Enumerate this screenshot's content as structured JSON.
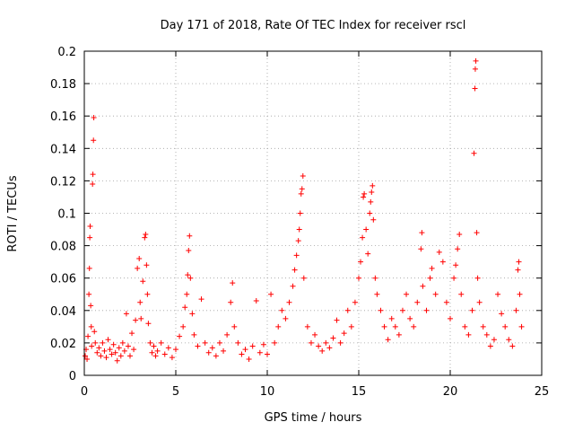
{
  "chart_data": {
    "type": "scatter",
    "title": "Day 171 of 2018, Rate Of TEC Index for receiver rscl",
    "xlabel": "GPS time / hours",
    "ylabel": "ROTI / TECUs",
    "xlim": [
      0,
      25
    ],
    "ylim": [
      0,
      0.2
    ],
    "xticks": [
      0,
      5,
      10,
      15,
      20,
      25
    ],
    "yticks": [
      0,
      0.02,
      0.04,
      0.06,
      0.08,
      0.1,
      0.12,
      0.14,
      0.16,
      0.18,
      0.2
    ],
    "xtick_labels": [
      "0",
      "5",
      "10",
      "15",
      "20",
      "25"
    ],
    "ytick_labels": [
      "0",
      "0.02",
      "0.04",
      "0.06",
      "0.08",
      "0.1",
      "0.12",
      "0.14",
      "0.16",
      "0.18",
      "0.2"
    ],
    "grid": true,
    "marker": "+",
    "color": "#ff0000",
    "series": [
      {
        "name": "ROTI",
        "points": [
          [
            0.05,
            0.012
          ],
          [
            0.1,
            0.016
          ],
          [
            0.15,
            0.01
          ],
          [
            0.2,
            0.024
          ],
          [
            0.25,
            0.05
          ],
          [
            0.28,
            0.066
          ],
          [
            0.3,
            0.085
          ],
          [
            0.32,
            0.092
          ],
          [
            0.35,
            0.043
          ],
          [
            0.38,
            0.03
          ],
          [
            0.4,
            0.018
          ],
          [
            0.45,
            0.118
          ],
          [
            0.47,
            0.124
          ],
          [
            0.5,
            0.145
          ],
          [
            0.52,
            0.159
          ],
          [
            0.55,
            0.027
          ],
          [
            0.6,
            0.02
          ],
          [
            0.7,
            0.014
          ],
          [
            0.8,
            0.017
          ],
          [
            0.9,
            0.012
          ],
          [
            1.0,
            0.02
          ],
          [
            1.1,
            0.015
          ],
          [
            1.2,
            0.011
          ],
          [
            1.3,
            0.022
          ],
          [
            1.4,
            0.016
          ],
          [
            1.5,
            0.013
          ],
          [
            1.6,
            0.019
          ],
          [
            1.7,
            0.014
          ],
          [
            1.8,
            0.009
          ],
          [
            1.9,
            0.017
          ],
          [
            2.0,
            0.012
          ],
          [
            2.1,
            0.02
          ],
          [
            2.2,
            0.015
          ],
          [
            2.3,
            0.038
          ],
          [
            2.4,
            0.018
          ],
          [
            2.5,
            0.012
          ],
          [
            2.6,
            0.026
          ],
          [
            2.7,
            0.016
          ],
          [
            2.8,
            0.034
          ],
          [
            2.9,
            0.066
          ],
          [
            3.0,
            0.072
          ],
          [
            3.05,
            0.045
          ],
          [
            3.1,
            0.035
          ],
          [
            3.2,
            0.058
          ],
          [
            3.3,
            0.085
          ],
          [
            3.35,
            0.087
          ],
          [
            3.4,
            0.068
          ],
          [
            3.45,
            0.05
          ],
          [
            3.5,
            0.032
          ],
          [
            3.6,
            0.02
          ],
          [
            3.7,
            0.014
          ],
          [
            3.8,
            0.018
          ],
          [
            3.9,
            0.012
          ],
          [
            4.0,
            0.015
          ],
          [
            4.2,
            0.02
          ],
          [
            4.4,
            0.013
          ],
          [
            4.6,
            0.017
          ],
          [
            4.8,
            0.011
          ],
          [
            5.0,
            0.016
          ],
          [
            5.2,
            0.024
          ],
          [
            5.4,
            0.03
          ],
          [
            5.5,
            0.042
          ],
          [
            5.6,
            0.05
          ],
          [
            5.65,
            0.062
          ],
          [
            5.7,
            0.077
          ],
          [
            5.75,
            0.086
          ],
          [
            5.8,
            0.06
          ],
          [
            5.9,
            0.038
          ],
          [
            6.0,
            0.025
          ],
          [
            6.2,
            0.018
          ],
          [
            6.4,
            0.047
          ],
          [
            6.6,
            0.02
          ],
          [
            6.8,
            0.014
          ],
          [
            7.0,
            0.017
          ],
          [
            7.2,
            0.012
          ],
          [
            7.4,
            0.02
          ],
          [
            7.6,
            0.015
          ],
          [
            7.8,
            0.025
          ],
          [
            8.0,
            0.045
          ],
          [
            8.1,
            0.057
          ],
          [
            8.2,
            0.03
          ],
          [
            8.4,
            0.02
          ],
          [
            8.6,
            0.013
          ],
          [
            8.8,
            0.016
          ],
          [
            9.0,
            0.01
          ],
          [
            9.2,
            0.018
          ],
          [
            9.4,
            0.046
          ],
          [
            9.6,
            0.014
          ],
          [
            9.8,
            0.019
          ],
          [
            10.0,
            0.013
          ],
          [
            10.2,
            0.05
          ],
          [
            10.4,
            0.02
          ],
          [
            10.6,
            0.03
          ],
          [
            10.8,
            0.04
          ],
          [
            11.0,
            0.035
          ],
          [
            11.2,
            0.045
          ],
          [
            11.4,
            0.055
          ],
          [
            11.5,
            0.065
          ],
          [
            11.6,
            0.074
          ],
          [
            11.7,
            0.083
          ],
          [
            11.75,
            0.09
          ],
          [
            11.8,
            0.1
          ],
          [
            11.85,
            0.112
          ],
          [
            11.9,
            0.115
          ],
          [
            11.95,
            0.123
          ],
          [
            12.0,
            0.06
          ],
          [
            12.2,
            0.03
          ],
          [
            12.4,
            0.02
          ],
          [
            12.6,
            0.025
          ],
          [
            12.8,
            0.018
          ],
          [
            13.0,
            0.015
          ],
          [
            13.2,
            0.02
          ],
          [
            13.4,
            0.017
          ],
          [
            13.6,
            0.023
          ],
          [
            13.8,
            0.034
          ],
          [
            14.0,
            0.02
          ],
          [
            14.2,
            0.026
          ],
          [
            14.4,
            0.04
          ],
          [
            14.6,
            0.03
          ],
          [
            14.8,
            0.045
          ],
          [
            15.0,
            0.06
          ],
          [
            15.1,
            0.07
          ],
          [
            15.2,
            0.085
          ],
          [
            15.25,
            0.11
          ],
          [
            15.3,
            0.112
          ],
          [
            15.4,
            0.09
          ],
          [
            15.5,
            0.075
          ],
          [
            15.6,
            0.1
          ],
          [
            15.65,
            0.107
          ],
          [
            15.7,
            0.113
          ],
          [
            15.75,
            0.117
          ],
          [
            15.8,
            0.096
          ],
          [
            15.9,
            0.06
          ],
          [
            16.0,
            0.05
          ],
          [
            16.2,
            0.04
          ],
          [
            16.4,
            0.03
          ],
          [
            16.6,
            0.022
          ],
          [
            16.8,
            0.035
          ],
          [
            17.0,
            0.03
          ],
          [
            17.2,
            0.025
          ],
          [
            17.4,
            0.04
          ],
          [
            17.6,
            0.05
          ],
          [
            17.8,
            0.035
          ],
          [
            18.0,
            0.03
          ],
          [
            18.2,
            0.045
          ],
          [
            18.4,
            0.078
          ],
          [
            18.45,
            0.088
          ],
          [
            18.5,
            0.055
          ],
          [
            18.7,
            0.04
          ],
          [
            18.9,
            0.06
          ],
          [
            19.0,
            0.066
          ],
          [
            19.2,
            0.05
          ],
          [
            19.4,
            0.076
          ],
          [
            19.6,
            0.07
          ],
          [
            19.8,
            0.045
          ],
          [
            20.0,
            0.035
          ],
          [
            20.2,
            0.06
          ],
          [
            20.3,
            0.068
          ],
          [
            20.4,
            0.078
          ],
          [
            20.5,
            0.087
          ],
          [
            20.6,
            0.05
          ],
          [
            20.8,
            0.03
          ],
          [
            21.0,
            0.025
          ],
          [
            21.2,
            0.04
          ],
          [
            21.3,
            0.137
          ],
          [
            21.35,
            0.177
          ],
          [
            21.37,
            0.189
          ],
          [
            21.4,
            0.194
          ],
          [
            21.45,
            0.088
          ],
          [
            21.5,
            0.06
          ],
          [
            21.6,
            0.045
          ],
          [
            21.8,
            0.03
          ],
          [
            22.0,
            0.025
          ],
          [
            22.2,
            0.018
          ],
          [
            22.4,
            0.022
          ],
          [
            22.6,
            0.05
          ],
          [
            22.8,
            0.038
          ],
          [
            23.0,
            0.03
          ],
          [
            23.2,
            0.022
          ],
          [
            23.4,
            0.018
          ],
          [
            23.6,
            0.04
          ],
          [
            23.7,
            0.065
          ],
          [
            23.75,
            0.07
          ],
          [
            23.8,
            0.05
          ],
          [
            23.9,
            0.03
          ]
        ]
      }
    ]
  }
}
